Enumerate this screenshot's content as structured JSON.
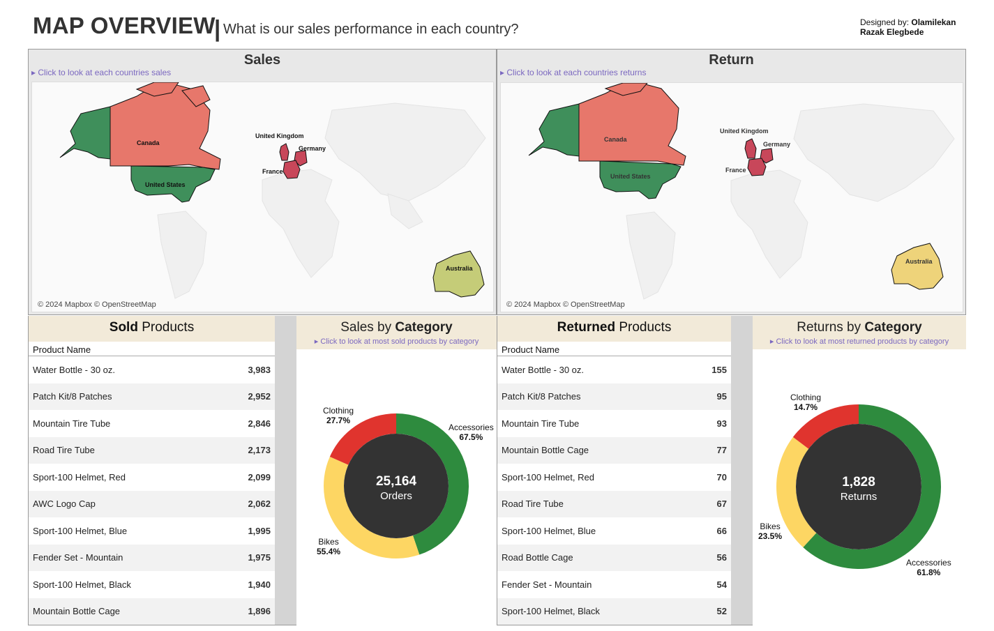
{
  "header": {
    "title": "MAP OVERVIEW",
    "separator": "|",
    "subtitle": "What is our sales performance in each country?",
    "designer_prefix": "Designed by: ",
    "designer_first": "Olamilekan",
    "designer_last": "Razak Elegbede"
  },
  "sales_map": {
    "title": "Sales",
    "link": "▸ Click to look at each countries sales",
    "credit": "© 2024 Mapbox © OpenStreetMap",
    "countries": [
      "Canada",
      "United States",
      "United Kingdom",
      "Germany",
      "France",
      "Australia"
    ]
  },
  "return_map": {
    "title": "Return",
    "link": "▸ Click to look at each countries returns",
    "credit": "© 2024 Mapbox © OpenStreetMap",
    "countries": [
      "Canada",
      "United States",
      "United Kingdom",
      "Germany",
      "France",
      "Australia"
    ]
  },
  "sold_table": {
    "title_bold": "Sold",
    "title_rest": " Products",
    "column": "Product Name",
    "rows": [
      {
        "name": "Water Bottle - 30 oz.",
        "value": "3,983"
      },
      {
        "name": "Patch Kit/8 Patches",
        "value": "2,952"
      },
      {
        "name": "Mountain Tire Tube",
        "value": "2,846"
      },
      {
        "name": "Road Tire Tube",
        "value": "2,173"
      },
      {
        "name": "Sport-100 Helmet, Red",
        "value": "2,099"
      },
      {
        "name": "AWC Logo Cap",
        "value": "2,062"
      },
      {
        "name": "Sport-100 Helmet, Blue",
        "value": "1,995"
      },
      {
        "name": "Fender Set - Mountain",
        "value": "1,975"
      },
      {
        "name": "Sport-100 Helmet, Black",
        "value": "1,940"
      },
      {
        "name": "Mountain Bottle Cage",
        "value": "1,896"
      }
    ]
  },
  "returned_table": {
    "title_bold": "Returned",
    "title_rest": " Products",
    "column": "Product Name",
    "rows": [
      {
        "name": "Water Bottle - 30 oz.",
        "value": "155"
      },
      {
        "name": "Patch Kit/8 Patches",
        "value": "95"
      },
      {
        "name": "Mountain Tire Tube",
        "value": "93"
      },
      {
        "name": "Mountain Bottle Cage",
        "value": "77"
      },
      {
        "name": "Sport-100 Helmet, Red",
        "value": "70"
      },
      {
        "name": "Road Tire Tube",
        "value": "67"
      },
      {
        "name": "Sport-100 Helmet, Blue",
        "value": "66"
      },
      {
        "name": "Road Bottle Cage",
        "value": "56"
      },
      {
        "name": "Fender Set - Mountain",
        "value": "54"
      },
      {
        "name": "Sport-100 Helmet, Black",
        "value": "52"
      }
    ]
  },
  "sales_donut": {
    "title_rest": "Sales by ",
    "title_bold": "Category",
    "link": "▸ Click to look at most sold products by category",
    "center_value": "25,164",
    "center_label": "Orders",
    "labels": {
      "clothing": {
        "name": "Clothing",
        "pct": "27.7%"
      },
      "accessories": {
        "name": "Accessories",
        "pct": "67.5%"
      },
      "bikes": {
        "name": "Bikes",
        "pct": "55.4%"
      }
    }
  },
  "returns_donut": {
    "title_rest": "Returns by ",
    "title_bold": "Category",
    "link": "▸ Click to look at most returned products by category",
    "center_value": "1,828",
    "center_label": "Returns",
    "labels": {
      "clothing": {
        "name": "Clothing",
        "pct": "14.7%"
      },
      "accessories": {
        "name": "Accessories",
        "pct": "61.8%"
      },
      "bikes": {
        "name": "Bikes",
        "pct": "23.5%"
      }
    }
  },
  "chart_data": [
    {
      "type": "pie",
      "categories": [
        "Accessories",
        "Bikes",
        "Clothing"
      ],
      "values": [
        67.5,
        55.4,
        27.7
      ],
      "colors": [
        "#2e8b3e",
        "#fdd663",
        "#e0342e"
      ],
      "center_text": "25,164 Orders"
    },
    {
      "type": "pie",
      "categories": [
        "Accessories",
        "Bikes",
        "Clothing"
      ],
      "values": [
        61.8,
        23.5,
        14.7
      ],
      "colors": [
        "#2e8b3e",
        "#fdd663",
        "#e0342e"
      ],
      "center_text": "1,828 Returns"
    }
  ],
  "colors": {
    "green": "#3f8f5b",
    "salmon": "#e7776b",
    "crimson": "#c8475a",
    "olive": "#c5cc78",
    "amber": "#eed37a",
    "link": "#7b68c0",
    "header_bg": "#f2ead9"
  }
}
